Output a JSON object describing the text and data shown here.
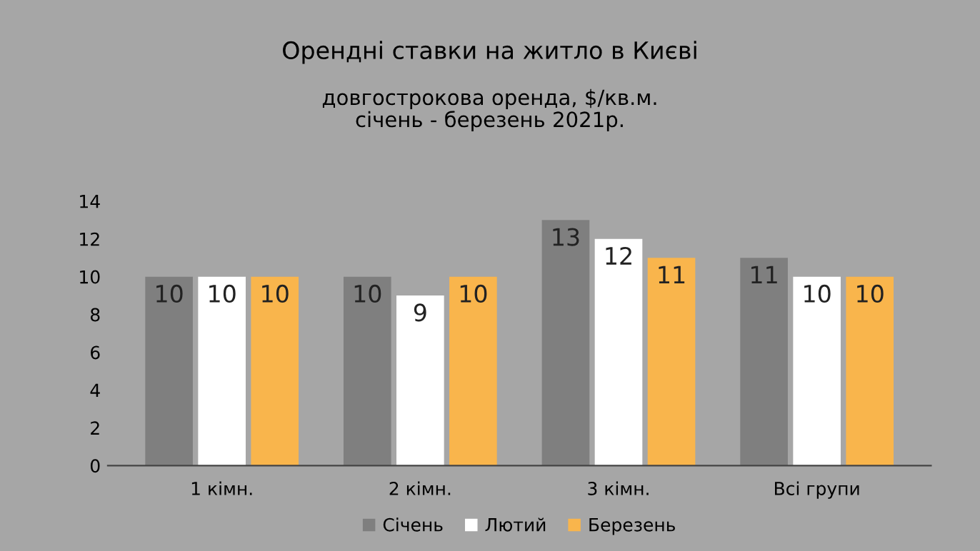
{
  "chart_data": {
    "type": "bar",
    "title": "Орендні ставки на житло в Києві",
    "subtitle": "довгострокова оренда, $/кв.м.\nсічень - березень 2021р.",
    "categories": [
      "1 кімн.",
      "2 кімн.",
      "3 кімн.",
      "Всі групи"
    ],
    "series": [
      {
        "name": "Січень",
        "color": "#7f7f7f",
        "values": [
          10,
          10,
          13,
          11
        ]
      },
      {
        "name": "Лютий",
        "color": "#ffffff",
        "values": [
          10,
          9,
          12,
          10
        ]
      },
      {
        "name": "Березень",
        "color": "#f9b54c",
        "values": [
          10,
          10,
          11,
          10
        ]
      }
    ],
    "ylim": [
      0,
      14
    ],
    "yticks": [
      0,
      2,
      4,
      6,
      8,
      10,
      12,
      14
    ],
    "grid": false,
    "legend": "bottom",
    "data_labels": true
  }
}
